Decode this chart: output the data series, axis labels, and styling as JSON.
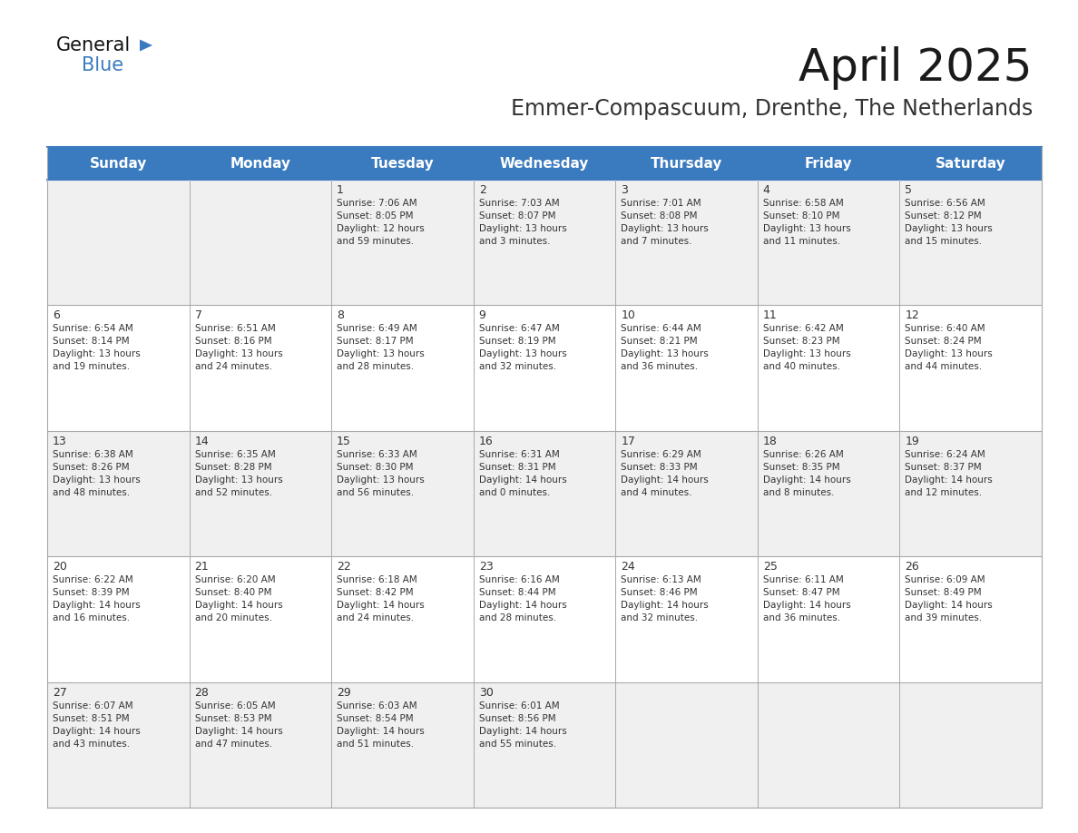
{
  "title": "April 2025",
  "subtitle": "Emmer-Compascuum, Drenthe, The Netherlands",
  "header_color": "#3a7abf",
  "header_text_color": "#ffffff",
  "row_bg_odd": "#f0f0f0",
  "row_bg_even": "#ffffff",
  "border_color": "#3a7abf",
  "grid_line_color": "#aaaaaa",
  "text_color": "#333333",
  "day_names": [
    "Sunday",
    "Monday",
    "Tuesday",
    "Wednesday",
    "Thursday",
    "Friday",
    "Saturday"
  ],
  "days": [
    {
      "day": 1,
      "col": 2,
      "row": 0,
      "sunrise": "7:06 AM",
      "sunset": "8:05 PM",
      "daylight_hours": 12,
      "daylight_minutes": 59
    },
    {
      "day": 2,
      "col": 3,
      "row": 0,
      "sunrise": "7:03 AM",
      "sunset": "8:07 PM",
      "daylight_hours": 13,
      "daylight_minutes": 3
    },
    {
      "day": 3,
      "col": 4,
      "row": 0,
      "sunrise": "7:01 AM",
      "sunset": "8:08 PM",
      "daylight_hours": 13,
      "daylight_minutes": 7
    },
    {
      "day": 4,
      "col": 5,
      "row": 0,
      "sunrise": "6:58 AM",
      "sunset": "8:10 PM",
      "daylight_hours": 13,
      "daylight_minutes": 11
    },
    {
      "day": 5,
      "col": 6,
      "row": 0,
      "sunrise": "6:56 AM",
      "sunset": "8:12 PM",
      "daylight_hours": 13,
      "daylight_minutes": 15
    },
    {
      "day": 6,
      "col": 0,
      "row": 1,
      "sunrise": "6:54 AM",
      "sunset": "8:14 PM",
      "daylight_hours": 13,
      "daylight_minutes": 19
    },
    {
      "day": 7,
      "col": 1,
      "row": 1,
      "sunrise": "6:51 AM",
      "sunset": "8:16 PM",
      "daylight_hours": 13,
      "daylight_minutes": 24
    },
    {
      "day": 8,
      "col": 2,
      "row": 1,
      "sunrise": "6:49 AM",
      "sunset": "8:17 PM",
      "daylight_hours": 13,
      "daylight_minutes": 28
    },
    {
      "day": 9,
      "col": 3,
      "row": 1,
      "sunrise": "6:47 AM",
      "sunset": "8:19 PM",
      "daylight_hours": 13,
      "daylight_minutes": 32
    },
    {
      "day": 10,
      "col": 4,
      "row": 1,
      "sunrise": "6:44 AM",
      "sunset": "8:21 PM",
      "daylight_hours": 13,
      "daylight_minutes": 36
    },
    {
      "day": 11,
      "col": 5,
      "row": 1,
      "sunrise": "6:42 AM",
      "sunset": "8:23 PM",
      "daylight_hours": 13,
      "daylight_minutes": 40
    },
    {
      "day": 12,
      "col": 6,
      "row": 1,
      "sunrise": "6:40 AM",
      "sunset": "8:24 PM",
      "daylight_hours": 13,
      "daylight_minutes": 44
    },
    {
      "day": 13,
      "col": 0,
      "row": 2,
      "sunrise": "6:38 AM",
      "sunset": "8:26 PM",
      "daylight_hours": 13,
      "daylight_minutes": 48
    },
    {
      "day": 14,
      "col": 1,
      "row": 2,
      "sunrise": "6:35 AM",
      "sunset": "8:28 PM",
      "daylight_hours": 13,
      "daylight_minutes": 52
    },
    {
      "day": 15,
      "col": 2,
      "row": 2,
      "sunrise": "6:33 AM",
      "sunset": "8:30 PM",
      "daylight_hours": 13,
      "daylight_minutes": 56
    },
    {
      "day": 16,
      "col": 3,
      "row": 2,
      "sunrise": "6:31 AM",
      "sunset": "8:31 PM",
      "daylight_hours": 14,
      "daylight_minutes": 0
    },
    {
      "day": 17,
      "col": 4,
      "row": 2,
      "sunrise": "6:29 AM",
      "sunset": "8:33 PM",
      "daylight_hours": 14,
      "daylight_minutes": 4
    },
    {
      "day": 18,
      "col": 5,
      "row": 2,
      "sunrise": "6:26 AM",
      "sunset": "8:35 PM",
      "daylight_hours": 14,
      "daylight_minutes": 8
    },
    {
      "day": 19,
      "col": 6,
      "row": 2,
      "sunrise": "6:24 AM",
      "sunset": "8:37 PM",
      "daylight_hours": 14,
      "daylight_minutes": 12
    },
    {
      "day": 20,
      "col": 0,
      "row": 3,
      "sunrise": "6:22 AM",
      "sunset": "8:39 PM",
      "daylight_hours": 14,
      "daylight_minutes": 16
    },
    {
      "day": 21,
      "col": 1,
      "row": 3,
      "sunrise": "6:20 AM",
      "sunset": "8:40 PM",
      "daylight_hours": 14,
      "daylight_minutes": 20
    },
    {
      "day": 22,
      "col": 2,
      "row": 3,
      "sunrise": "6:18 AM",
      "sunset": "8:42 PM",
      "daylight_hours": 14,
      "daylight_minutes": 24
    },
    {
      "day": 23,
      "col": 3,
      "row": 3,
      "sunrise": "6:16 AM",
      "sunset": "8:44 PM",
      "daylight_hours": 14,
      "daylight_minutes": 28
    },
    {
      "day": 24,
      "col": 4,
      "row": 3,
      "sunrise": "6:13 AM",
      "sunset": "8:46 PM",
      "daylight_hours": 14,
      "daylight_minutes": 32
    },
    {
      "day": 25,
      "col": 5,
      "row": 3,
      "sunrise": "6:11 AM",
      "sunset": "8:47 PM",
      "daylight_hours": 14,
      "daylight_minutes": 36
    },
    {
      "day": 26,
      "col": 6,
      "row": 3,
      "sunrise": "6:09 AM",
      "sunset": "8:49 PM",
      "daylight_hours": 14,
      "daylight_minutes": 39
    },
    {
      "day": 27,
      "col": 0,
      "row": 4,
      "sunrise": "6:07 AM",
      "sunset": "8:51 PM",
      "daylight_hours": 14,
      "daylight_minutes": 43
    },
    {
      "day": 28,
      "col": 1,
      "row": 4,
      "sunrise": "6:05 AM",
      "sunset": "8:53 PM",
      "daylight_hours": 14,
      "daylight_minutes": 47
    },
    {
      "day": 29,
      "col": 2,
      "row": 4,
      "sunrise": "6:03 AM",
      "sunset": "8:54 PM",
      "daylight_hours": 14,
      "daylight_minutes": 51
    },
    {
      "day": 30,
      "col": 3,
      "row": 4,
      "sunrise": "6:01 AM",
      "sunset": "8:56 PM",
      "daylight_hours": 14,
      "daylight_minutes": 55
    }
  ],
  "logo_general_color": "#111111",
  "logo_blue_color": "#3a7abf",
  "logo_triangle_color": "#3a7abf",
  "title_fontsize": 36,
  "subtitle_fontsize": 17,
  "header_fontsize": 11,
  "day_num_fontsize": 9,
  "cell_text_fontsize": 7.5
}
